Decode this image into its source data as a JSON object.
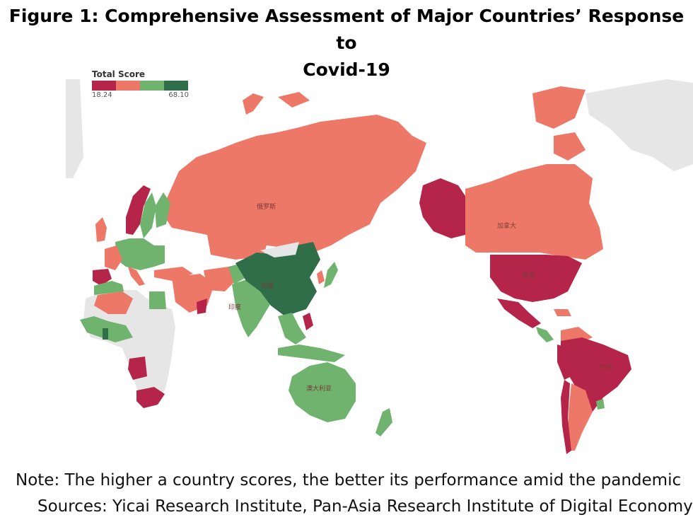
{
  "title_line1": "Figure 1: Comprehensive Assessment of Major Countries’ Response to",
  "title_line2": "Covid-19",
  "legend": {
    "title": "Total Score",
    "min": "18.24",
    "max": "68.10",
    "colors": [
      "#b5254a",
      "#ee7867",
      "#6fb36f",
      "#2f6e48"
    ]
  },
  "map_labels": {
    "russia": "俄罗斯",
    "canada": "加拿大",
    "usa": "美国",
    "china": "中国",
    "india": "印度",
    "brazil": "巴西",
    "australia": "澳大利亚"
  },
  "note": "Note: The higher a country scores, the better its performance amid the pandemic",
  "sources": "Sources: Yicai Research Institute, Pan-Asia Research Institute of Digital Economy"
}
